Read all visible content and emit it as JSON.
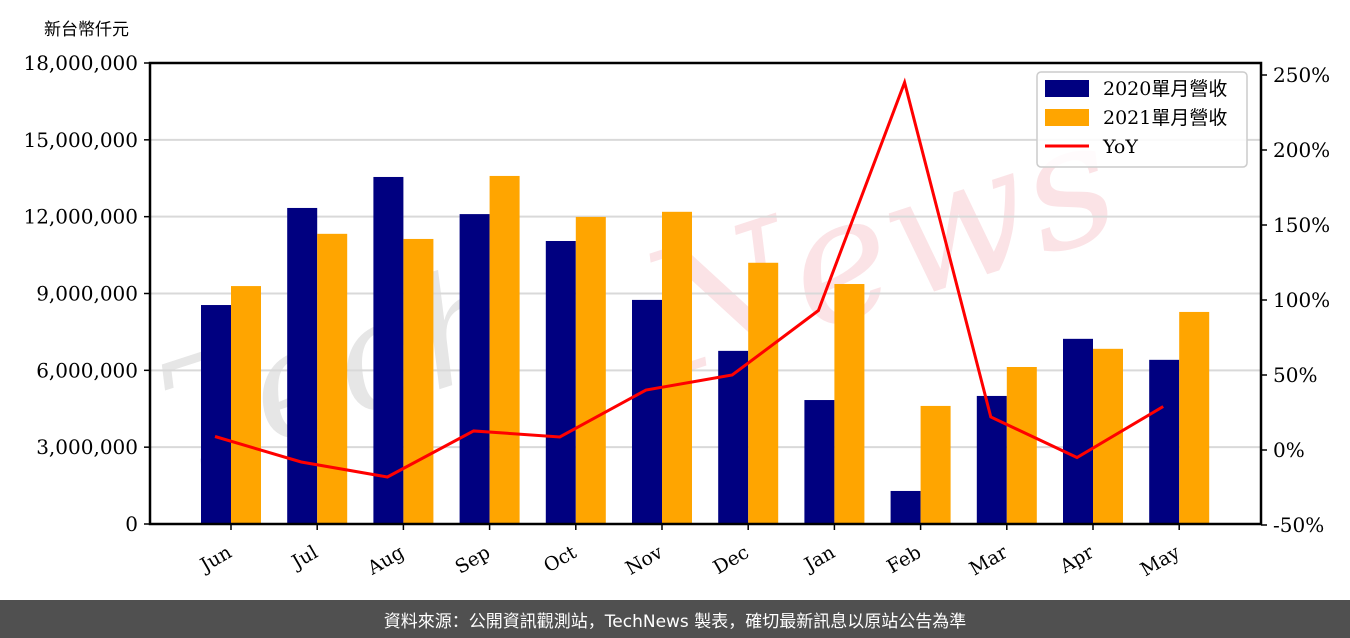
{
  "chart_data": {
    "type": "bar",
    "title": "",
    "ylabel": "新台幣仟元",
    "ylabel_right": "",
    "xlabel": "",
    "categories": [
      "Jun",
      "Jul",
      "Aug",
      "Sep",
      "Oct",
      "Nov",
      "Dec",
      "Jan",
      "Feb",
      "Mar",
      "Apr",
      "May"
    ],
    "series": [
      {
        "name": "2020單月營收",
        "type": "bar",
        "color": "#000080",
        "axis": "left",
        "values": [
          8550000,
          12340000,
          13550000,
          12100000,
          11050000,
          8750000,
          6760000,
          4840000,
          1290000,
          5000000,
          7230000,
          6410000
        ]
      },
      {
        "name": "2021單月營收",
        "type": "bar",
        "color": "#FFA500",
        "axis": "left",
        "values": [
          9290000,
          11330000,
          11130000,
          13590000,
          11990000,
          12190000,
          10200000,
          9370000,
          4610000,
          6130000,
          6840000,
          8280000
        ]
      },
      {
        "name": "YoY",
        "type": "line",
        "color": "#FF0000",
        "axis": "right",
        "values": [
          9,
          -8,
          -18,
          12.7,
          8.7,
          40,
          50,
          93,
          245,
          22,
          -5,
          29
        ]
      }
    ],
    "ylim": [
      0,
      18000000
    ],
    "ylim_right": [
      -50,
      250
    ],
    "yticks": [
      "0",
      "3,000,000",
      "6,000,000",
      "9,000,000",
      "12,000,000",
      "15,000,000",
      "18,000,000"
    ],
    "yticks_right": [
      "-50%",
      "0%",
      "50%",
      "100%",
      "150%",
      "200%",
      "250%"
    ],
    "grid": true,
    "legend_position": "upper right"
  },
  "footer": {
    "text": "資料來源：公開資訊觀測站，TechNews 製表，確切最新訊息以原站公告為準"
  },
  "watermark": {
    "tech": "Tech",
    "news": "News"
  }
}
